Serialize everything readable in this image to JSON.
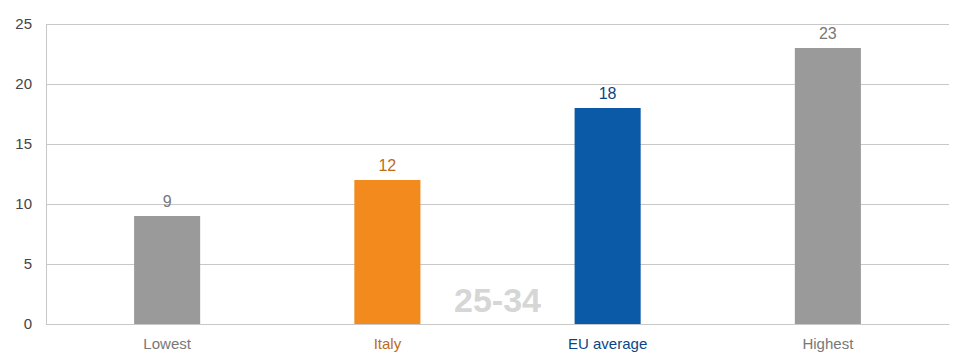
{
  "chart_data": {
    "type": "bar",
    "categories": [
      "Lowest",
      "Italy",
      "EU average",
      "Highest"
    ],
    "values": [
      9,
      12,
      18,
      23
    ],
    "colors": [
      "#9a9a9a",
      "#f28a1e",
      "#0b5aa8",
      "#9a9a9a"
    ],
    "ylim": [
      0,
      25
    ],
    "yticks": [
      0,
      5,
      10,
      15,
      20,
      25
    ],
    "grid": true,
    "data_labels": true,
    "annotation": "25-34"
  }
}
